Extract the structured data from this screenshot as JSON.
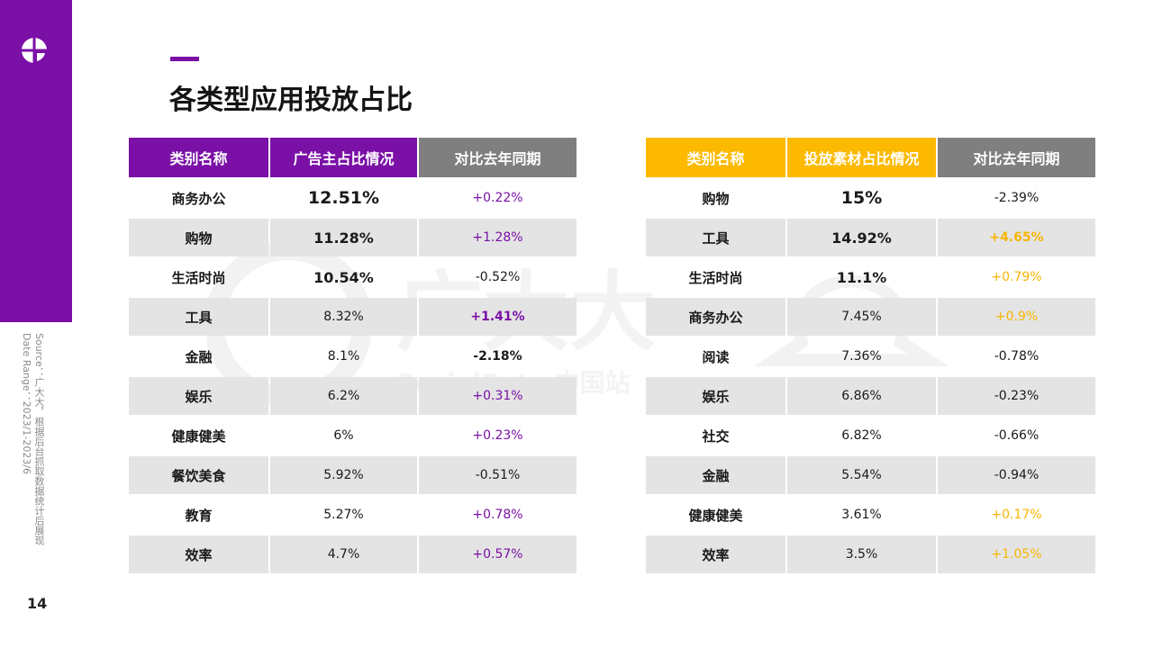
{
  "title": "各类型应用投放占比",
  "page_number": "14",
  "source_lines": [
    "Source：广大大，根据后台抓取数据统计后展现",
    "Date Range：2023/1-2023/6"
  ],
  "watermark": {
    "brand": "广大大",
    "sub": "SocialPeta 中国站"
  },
  "colors": {
    "brand_purple": "#7a10a6",
    "accent_yellow": "#fcb900",
    "header_gray": "#7f7f7f",
    "row_alt": "#e4e4e4"
  },
  "left_table": {
    "headers": [
      "类别名称",
      "广告主占比情况",
      "对比去年同期"
    ],
    "rows": [
      {
        "category": "商务办公",
        "share": "12.51%",
        "yoy": "+0.22%"
      },
      {
        "category": "购物",
        "share": "11.28%",
        "yoy": "+1.28%"
      },
      {
        "category": "生活时尚",
        "share": "10.54%",
        "yoy": "-0.52%"
      },
      {
        "category": "工具",
        "share": "8.32%",
        "yoy": "+1.41%"
      },
      {
        "category": "金融",
        "share": "8.1%",
        "yoy": "-2.18%"
      },
      {
        "category": "娱乐",
        "share": "6.2%",
        "yoy": "+0.31%"
      },
      {
        "category": "健康健美",
        "share": "6%",
        "yoy": "+0.23%"
      },
      {
        "category": "餐饮美食",
        "share": "5.92%",
        "yoy": "-0.51%"
      },
      {
        "category": "教育",
        "share": "5.27%",
        "yoy": "+0.78%"
      },
      {
        "category": "效率",
        "share": "4.7%",
        "yoy": "+0.57%"
      }
    ]
  },
  "right_table": {
    "headers": [
      "类别名称",
      "投放素材占比情况",
      "对比去年同期"
    ],
    "rows": [
      {
        "category": "购物",
        "share": "15%",
        "yoy": "-2.39%"
      },
      {
        "category": "工具",
        "share": "14.92%",
        "yoy": "+4.65%"
      },
      {
        "category": "生活时尚",
        "share": "11.1%",
        "yoy": "+0.79%"
      },
      {
        "category": "商务办公",
        "share": "7.45%",
        "yoy": "+0.9%"
      },
      {
        "category": "阅读",
        "share": "7.36%",
        "yoy": "-0.78%"
      },
      {
        "category": "娱乐",
        "share": "6.86%",
        "yoy": "-0.23%"
      },
      {
        "category": "社交",
        "share": "6.82%",
        "yoy": "-0.66%"
      },
      {
        "category": "金融",
        "share": "5.54%",
        "yoy": "-0.94%"
      },
      {
        "category": "健康健美",
        "share": "3.61%",
        "yoy": "+0.17%"
      },
      {
        "category": "效率",
        "share": "3.5%",
        "yoy": "+1.05%"
      }
    ]
  }
}
